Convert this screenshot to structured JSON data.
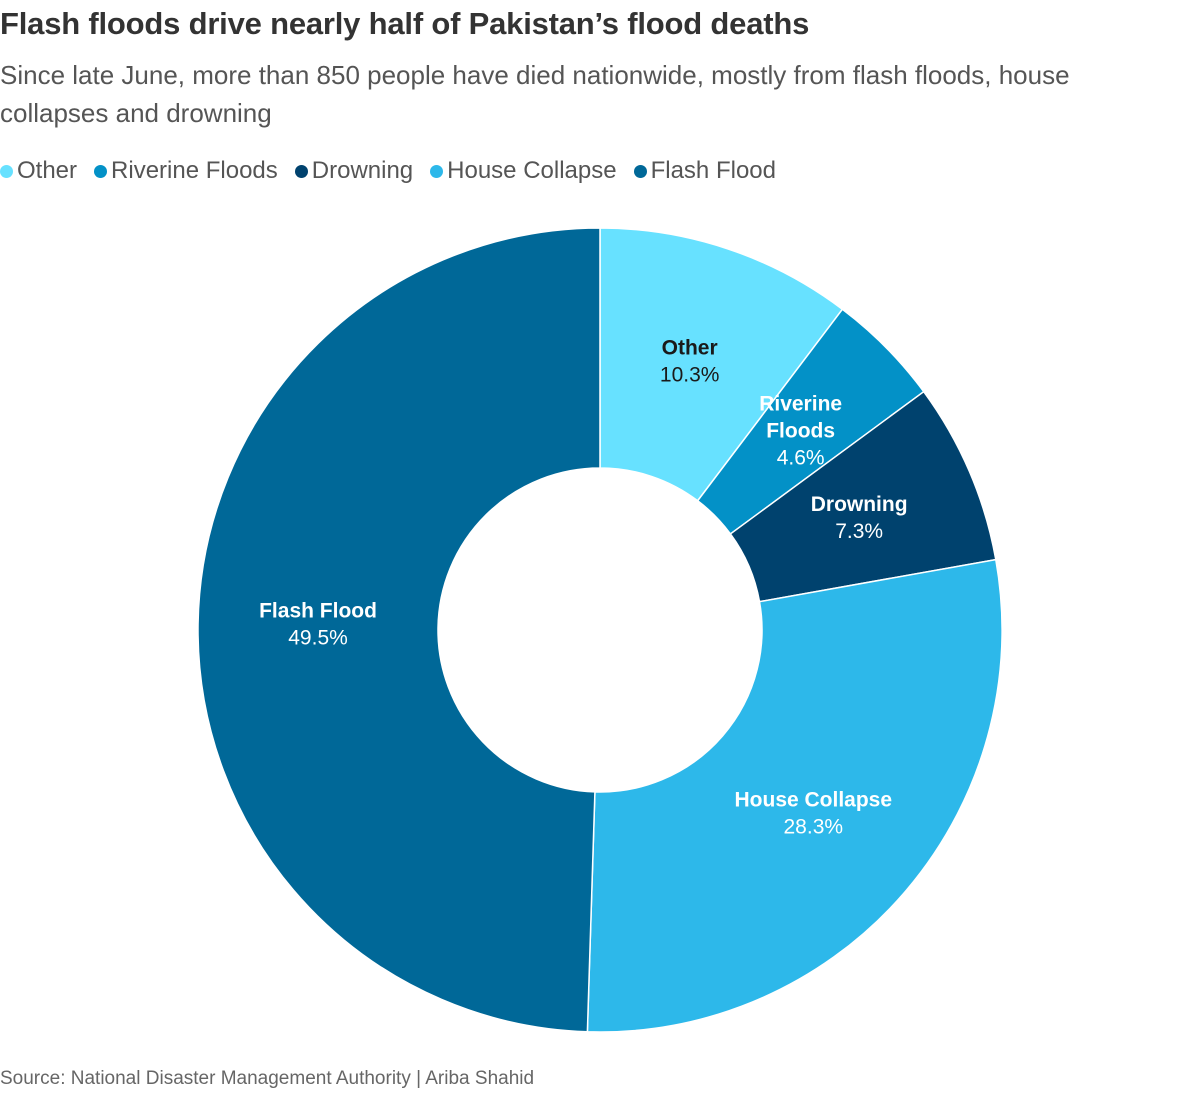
{
  "title": "Flash floods drive nearly half of Pakistan’s flood deaths",
  "subtitle": "Since late June, more than 850 people have died nationwide, mostly from flash floods, house collapses and drowning",
  "source": "Source: National Disaster Management Authority | Ariba Shahid",
  "chart_data": {
    "type": "pie",
    "style": "donut",
    "legend_placement": "top-left",
    "unit": "%",
    "slices": [
      {
        "name": "Other",
        "value": 10.3,
        "value_label": "10.3%",
        "label_lines": [
          "Other"
        ],
        "color": "#67E1FF",
        "label_color": "#1a1a1a"
      },
      {
        "name": "Riverine Floods",
        "value": 4.6,
        "value_label": "4.6%",
        "label_lines": [
          "Riverine",
          "Floods"
        ],
        "color": "#0391C7",
        "label_color": "#ffffff"
      },
      {
        "name": "Drowning",
        "value": 7.3,
        "value_label": "7.3%",
        "label_lines": [
          "Drowning"
        ],
        "color": "#00426E",
        "label_color": "#ffffff"
      },
      {
        "name": "House Collapse",
        "value": 28.3,
        "value_label": "28.3%",
        "label_lines": [
          "House Collapse"
        ],
        "color": "#2DB8EA",
        "label_color": "#ffffff"
      },
      {
        "name": "Flash Flood",
        "value": 49.5,
        "value_label": "49.5%",
        "label_lines": [
          "Flash Flood"
        ],
        "color": "#006898",
        "label_color": "#ffffff"
      }
    ]
  }
}
